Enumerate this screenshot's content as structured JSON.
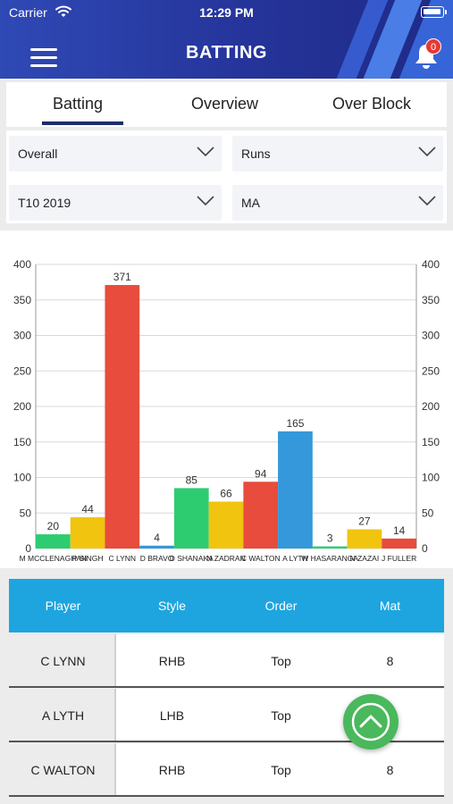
{
  "status_bar": {
    "carrier": "Carrier",
    "time": "12:29 PM"
  },
  "header": {
    "title": "BATTING",
    "notification_count": "0"
  },
  "tabs": [
    {
      "label": "Batting",
      "active": true
    },
    {
      "label": "Overview",
      "active": false
    },
    {
      "label": "Over Block",
      "active": false
    }
  ],
  "filters": {
    "scope": "Overall",
    "metric": "Runs",
    "tournament": "T10 2019",
    "team": "MA"
  },
  "chart_data": {
    "type": "bar",
    "categories": [
      "M MCCLENAGHAN",
      "P SINGH",
      "C LYNN",
      "D BRAVO",
      "D SHANAKA",
      "N ZADRAN",
      "C WALTON",
      "A LYTH",
      "W HASARANGA",
      "N ZAZAI",
      "J FULLER"
    ],
    "values": [
      20,
      44,
      371,
      4,
      85,
      66,
      94,
      165,
      3,
      27,
      14
    ],
    "colors": [
      "#2ecc71",
      "#f1c40f",
      "#e74c3c",
      "#3498db",
      "#2ecc71",
      "#f1c40f",
      "#e74c3c",
      "#3498db",
      "#2ecc71",
      "#f1c40f",
      "#e74c3c"
    ],
    "ylim": [
      0,
      400
    ],
    "yticks": [
      0,
      50,
      100,
      150,
      200,
      250,
      300,
      350,
      400
    ],
    "grid": true,
    "dual_axis": true
  },
  "table": {
    "headers": [
      "Player",
      "Style",
      "Order",
      "Mat"
    ],
    "rows": [
      [
        "C LYNN",
        "RHB",
        "Top",
        "8"
      ],
      [
        "A LYTH",
        "LHB",
        "Top",
        ""
      ],
      [
        "C WALTON",
        "RHB",
        "Top",
        "8"
      ]
    ]
  },
  "icons": {
    "menu": "hamburger-icon",
    "notifications": "bell-icon",
    "dropdown": "chevron-down-icon",
    "scroll_top": "chevron-up-icon",
    "wifi": "wifi-icon",
    "battery": "battery-icon"
  }
}
